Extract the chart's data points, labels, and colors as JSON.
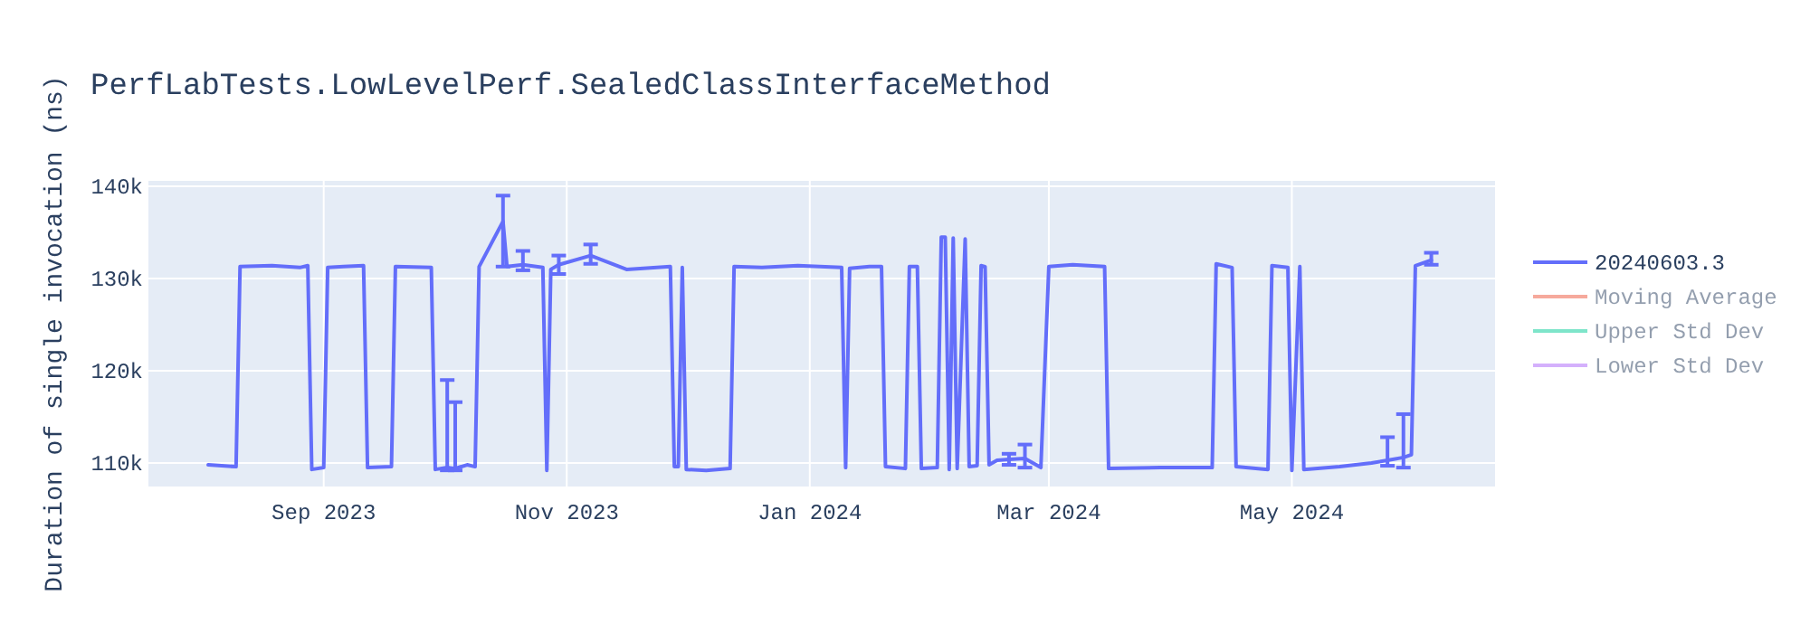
{
  "chart_data": {
    "type": "line",
    "title": "PerfLabTests.LowLevelPerf.SealedClassInterfaceMethod",
    "ylabel": "Duration of single invocation (ns)",
    "xlim": [
      "2023-07-19",
      "2024-06-21"
    ],
    "xticks": [
      {
        "value": "2023-09-01",
        "label": "Sep 2023"
      },
      {
        "value": "2023-11-01",
        "label": "Nov 2023"
      },
      {
        "value": "2024-01-01",
        "label": "Jan 2024"
      },
      {
        "value": "2024-03-01",
        "label": "Mar 2024"
      },
      {
        "value": "2024-05-01",
        "label": "May 2024"
      }
    ],
    "ylim": [
      107450,
      140600
    ],
    "yticks": [
      {
        "value": 110000,
        "label": "110k"
      },
      {
        "value": 120000,
        "label": "120k"
      },
      {
        "value": 130000,
        "label": "130k"
      },
      {
        "value": 140000,
        "label": "140k"
      }
    ],
    "grid": true,
    "legend": "top right",
    "series": [
      {
        "name": "20240603.3",
        "color": "#636efa",
        "x": [
          "2023-08-03",
          "2023-08-10",
          "2023-08-11",
          "2023-08-19",
          "2023-08-26",
          "2023-08-28",
          "2023-08-29",
          "2023-09-01",
          "2023-09-02",
          "2023-09-06",
          "2023-09-11",
          "2023-09-12",
          "2023-09-18",
          "2023-09-19",
          "2023-09-28",
          "2023-09-29",
          "2023-10-02",
          "2023-10-04",
          "2023-10-07",
          "2023-10-09",
          "2023-10-10",
          "2023-10-16",
          "2023-10-17",
          "2023-10-21",
          "2023-10-26",
          "2023-10-27",
          "2023-10-28",
          "2023-10-30",
          "2023-11-07",
          "2023-11-16",
          "2023-11-27",
          "2023-11-28",
          "2023-11-29",
          "2023-11-30",
          "2023-12-01",
          "2023-12-06",
          "2023-12-12",
          "2023-12-13",
          "2023-12-20",
          "2023-12-29",
          "2024-01-09",
          "2024-01-10",
          "2024-01-11",
          "2024-01-16",
          "2024-01-19",
          "2024-01-20",
          "2024-01-25",
          "2024-01-26",
          "2024-01-28",
          "2024-01-29",
          "2024-02-02",
          "2024-02-03",
          "2024-02-04",
          "2024-02-05",
          "2024-02-06",
          "2024-02-07",
          "2024-02-09",
          "2024-02-10",
          "2024-02-12",
          "2024-02-13",
          "2024-02-14",
          "2024-02-15",
          "2024-02-17",
          "2024-02-20",
          "2024-02-24",
          "2024-02-28",
          "2024-03-01",
          "2024-03-07",
          "2024-03-15",
          "2024-03-16",
          "2024-03-29",
          "2024-04-11",
          "2024-04-12",
          "2024-04-16",
          "2024-04-17",
          "2024-04-25",
          "2024-04-26",
          "2024-04-30",
          "2024-05-01",
          "2024-05-03",
          "2024-05-04",
          "2024-05-13",
          "2024-05-21",
          "2024-05-25",
          "2024-05-29",
          "2024-05-31",
          "2024-06-01",
          "2024-06-05"
        ],
        "values": [
          109800,
          109600,
          131300,
          131400,
          131200,
          131400,
          109300,
          109500,
          131200,
          131300,
          131400,
          109500,
          109600,
          131300,
          131200,
          109300,
          109500,
          109400,
          109800,
          109600,
          131300,
          136200,
          131300,
          131500,
          131200,
          109200,
          131000,
          131500,
          132500,
          131000,
          131300,
          109600,
          109600,
          131200,
          109300,
          109200,
          109400,
          131300,
          131200,
          131400,
          131200,
          109500,
          131100,
          131300,
          131300,
          109600,
          109400,
          131300,
          131300,
          109400,
          109500,
          134500,
          134500,
          109300,
          134400,
          109400,
          134300,
          109600,
          109700,
          131400,
          131300,
          109800,
          110300,
          110400,
          110500,
          109500,
          131300,
          131500,
          131300,
          109400,
          109500,
          109500,
          131600,
          131200,
          109600,
          109300,
          131400,
          131200,
          109200,
          131300,
          109300,
          109600,
          110000,
          110300,
          110600,
          110900,
          131400,
          132000
        ],
        "errors": [
          null,
          null,
          null,
          null,
          null,
          null,
          null,
          null,
          null,
          null,
          null,
          null,
          null,
          null,
          null,
          null,
          [
            109200,
            119000
          ],
          [
            109200,
            116600
          ],
          null,
          null,
          null,
          [
            131300,
            139000
          ],
          null,
          [
            130900,
            133000
          ],
          null,
          null,
          null,
          [
            130500,
            132500
          ],
          [
            131600,
            133700
          ],
          null,
          null,
          null,
          null,
          null,
          null,
          null,
          null,
          null,
          null,
          null,
          null,
          null,
          null,
          null,
          null,
          null,
          null,
          null,
          null,
          null,
          null,
          null,
          null,
          null,
          null,
          null,
          null,
          null,
          null,
          null,
          null,
          null,
          null,
          [
            109800,
            111000
          ],
          [
            109500,
            112000
          ],
          null,
          null,
          null,
          null,
          null,
          null,
          null,
          null,
          null,
          null,
          null,
          null,
          null,
          null,
          null,
          null,
          null,
          null,
          [
            109700,
            112800
          ],
          [
            109500,
            115300
          ],
          null,
          null,
          [
            131500,
            132800
          ]
        ]
      },
      {
        "name": "Moving Average",
        "color": "#ef553b"
      },
      {
        "name": "Upper Std Dev",
        "color": "#00cc96"
      },
      {
        "name": "Lower Std Dev",
        "color": "#ab63fa"
      }
    ]
  }
}
